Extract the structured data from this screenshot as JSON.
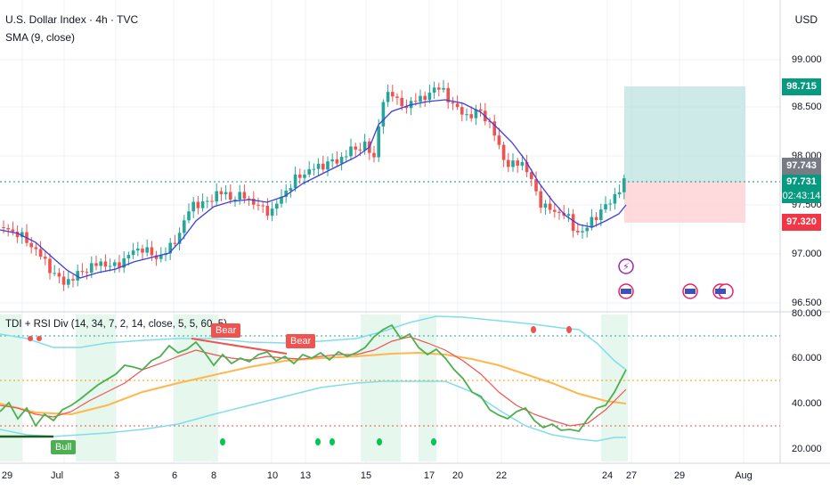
{
  "header": {
    "symbol_line": "U.S. Dollar Index · 4h · TVC",
    "indicator1": "SMA (9, close)",
    "currency": "USD"
  },
  "price_axis": {
    "ticks": [
      "99.000",
      "98.500",
      "98.000",
      "97.500",
      "97.000",
      "96.500"
    ],
    "tag_high": "98.715",
    "tag_mid": "97.743",
    "tag_current": "97.731",
    "tag_countdown": "02:43:14",
    "tag_low": "97.320"
  },
  "indicator_pane": {
    "title": "TDI + RSI Div (14, 34, 7, 2, 14, close, 5, 5, 60, 5)",
    "ticks": [
      "80.000",
      "60.000",
      "40.000",
      "20.000"
    ],
    "signal_bear_1": "Bear",
    "signal_bear_2": "Bear",
    "signal_bull": "Bull"
  },
  "time_axis": {
    "labels": [
      "29",
      "Jul",
      "3",
      "6",
      "8",
      "10",
      "13",
      "15",
      "17",
      "20",
      "22",
      "24",
      "27",
      "29",
      "Aug"
    ]
  },
  "colors": {
    "up": "#26a69a",
    "down": "#ef5350",
    "sma": "#3e3ee0",
    "current": "#089981",
    "stop": "#f23645"
  }
}
